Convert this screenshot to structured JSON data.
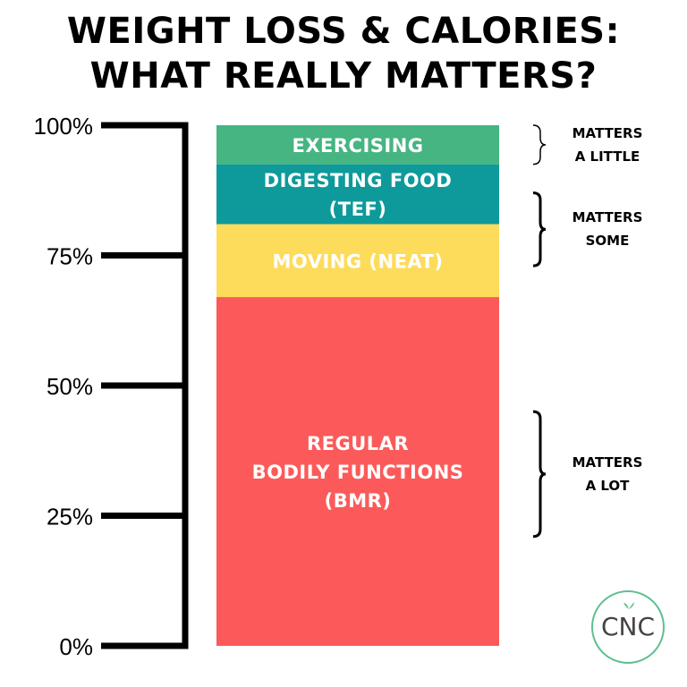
{
  "title": {
    "line1": "WEIGHT LOSS & CALORIES:",
    "line2": "WHAT REALLY MATTERS?"
  },
  "chart_data": {
    "type": "bar",
    "stacked": true,
    "ylim": [
      0,
      100
    ],
    "yticks": [
      "0%",
      "25%",
      "50%",
      "75%",
      "100%"
    ],
    "ytick_values": [
      0,
      25,
      50,
      75,
      100
    ],
    "segments": [
      {
        "label_lines": [
          "REGULAR",
          "BODILY FUNCTIONS",
          "(BMR)"
        ],
        "start": 0,
        "end": 67,
        "color": "#fc5a5a"
      },
      {
        "label_lines": [
          "MOVING (NEAT)"
        ],
        "start": 67,
        "end": 81,
        "color": "#fddc5c"
      },
      {
        "label_lines": [
          "DIGESTING FOOD",
          "(TEF)"
        ],
        "start": 81,
        "end": 92.5,
        "color": "#0e9a9b"
      },
      {
        "label_lines": [
          "EXERCISING"
        ],
        "start": 92.5,
        "end": 100,
        "color": "#46b582"
      }
    ],
    "annotations": [
      {
        "lines": [
          "MATTERS",
          "A LITTLE"
        ],
        "start": 92.5,
        "end": 100
      },
      {
        "lines": [
          "MATTERS",
          "SOME"
        ],
        "start": 73,
        "end": 87
      },
      {
        "lines": [
          "MATTERS",
          "A LOT"
        ],
        "start": 21,
        "end": 45
      }
    ]
  },
  "logo": {
    "text": "CNC",
    "border_color": "#5fbf8f"
  }
}
